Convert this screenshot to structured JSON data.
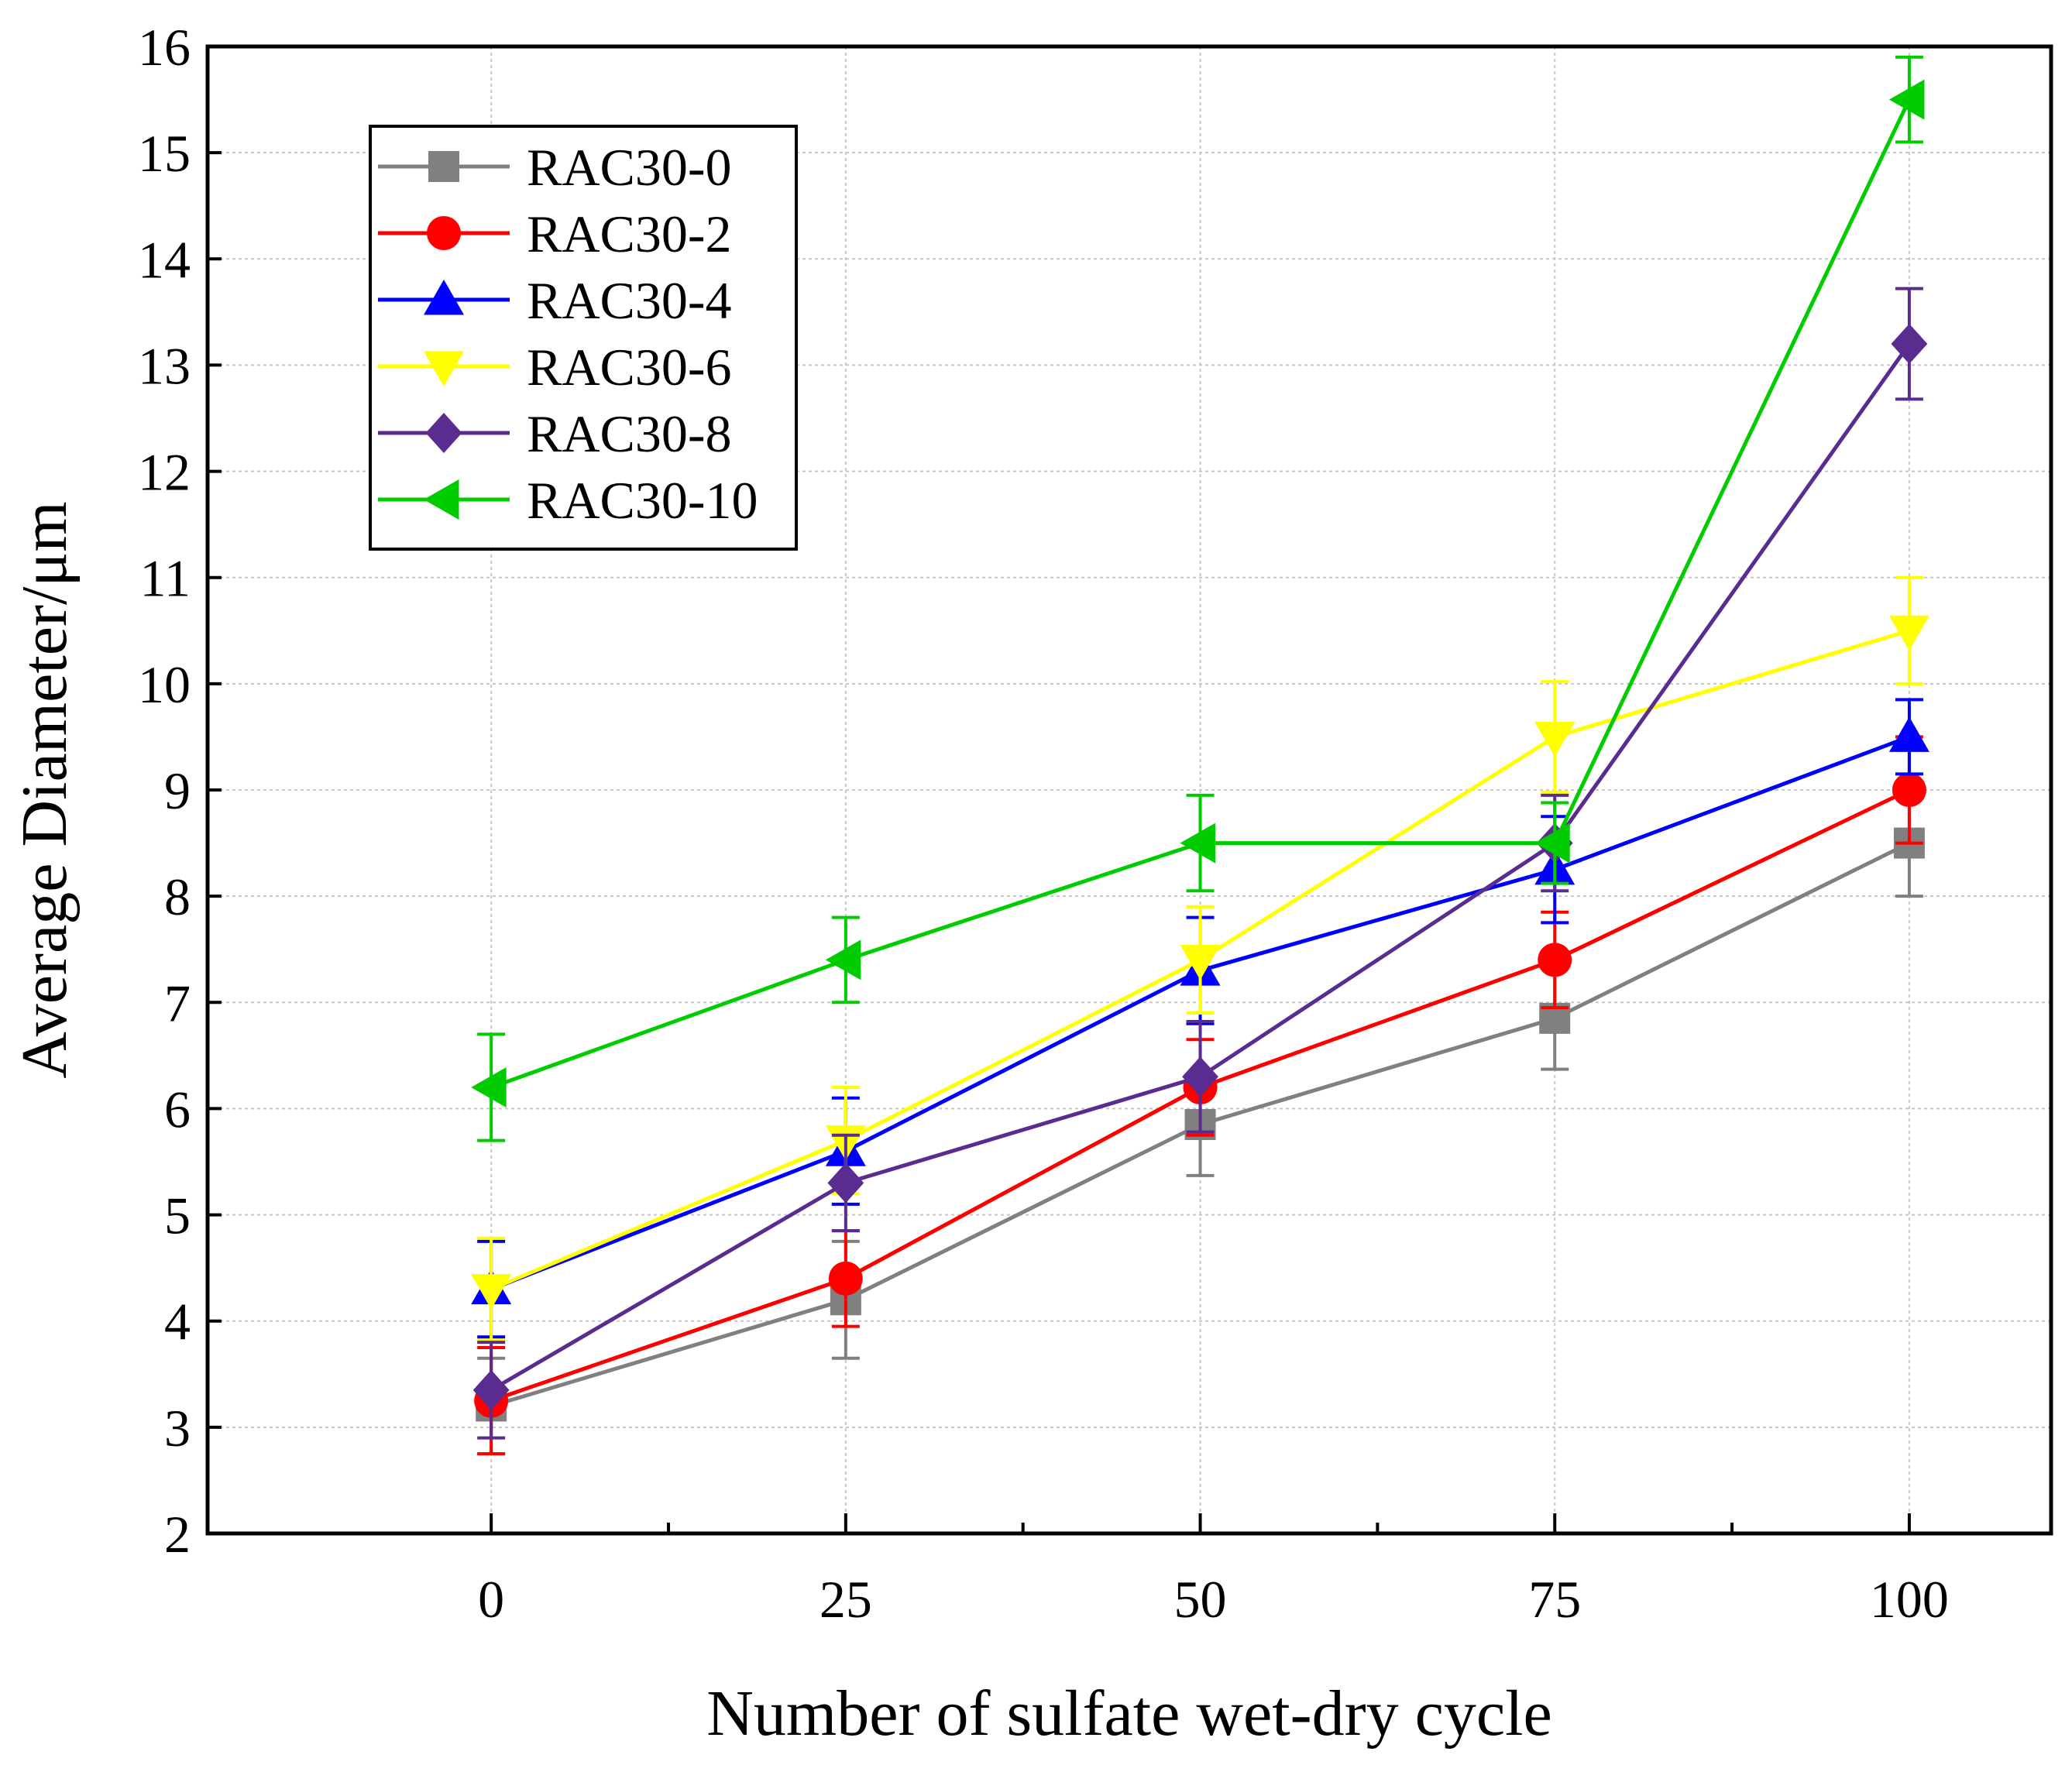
{
  "chart_data": {
    "type": "line",
    "title": "",
    "xlabel": "Number of sulfate wet-dry cycle",
    "ylabel": "Average Diameter/μm",
    "xlim": [
      -20,
      110
    ],
    "ylim": [
      2,
      16
    ],
    "x": [
      0,
      25,
      50,
      75,
      100
    ],
    "x_ticks": [
      "0",
      "25",
      "50",
      "75",
      "100"
    ],
    "y_ticks": [
      "2",
      "3",
      "4",
      "5",
      "6",
      "7",
      "8",
      "9",
      "10",
      "11",
      "12",
      "13",
      "14",
      "15",
      "16"
    ],
    "grid": true,
    "legend_position": "top-left",
    "series": [
      {
        "name": "RAC30-0",
        "color": "#808080",
        "marker": "square",
        "values": [
          3.2,
          4.2,
          5.85,
          6.85,
          8.5
        ],
        "errors": [
          0.45,
          0.55,
          0.48,
          0.48,
          0.5
        ]
      },
      {
        "name": "RAC30-2",
        "color": "#ff0000",
        "marker": "circle",
        "values": [
          3.25,
          4.4,
          6.2,
          7.4,
          9.0
        ],
        "errors": [
          0.5,
          0.45,
          0.45,
          0.45,
          0.5
        ]
      },
      {
        "name": "RAC30-4",
        "color": "#0000ff",
        "marker": "triangle-up",
        "values": [
          4.3,
          5.6,
          7.3,
          8.25,
          9.5
        ],
        "errors": [
          0.45,
          0.5,
          0.5,
          0.5,
          0.35
        ]
      },
      {
        "name": "RAC30-6",
        "color": "#ffff00",
        "marker": "triangle-down",
        "values": [
          4.3,
          5.7,
          7.4,
          9.5,
          10.5
        ],
        "errors": [
          0.48,
          0.5,
          0.5,
          0.52,
          0.5
        ]
      },
      {
        "name": "RAC30-8",
        "color": "#5b2c8f",
        "marker": "diamond",
        "values": [
          3.35,
          5.3,
          6.3,
          8.5,
          13.2
        ],
        "errors": [
          0.45,
          0.45,
          0.52,
          0.45,
          0.52
        ]
      },
      {
        "name": "RAC30-10",
        "color": "#00cc00",
        "marker": "triangle-left",
        "values": [
          6.2,
          7.4,
          8.5,
          8.5,
          15.5
        ],
        "errors": [
          0.5,
          0.4,
          0.45,
          0.38,
          0.4
        ]
      }
    ]
  }
}
